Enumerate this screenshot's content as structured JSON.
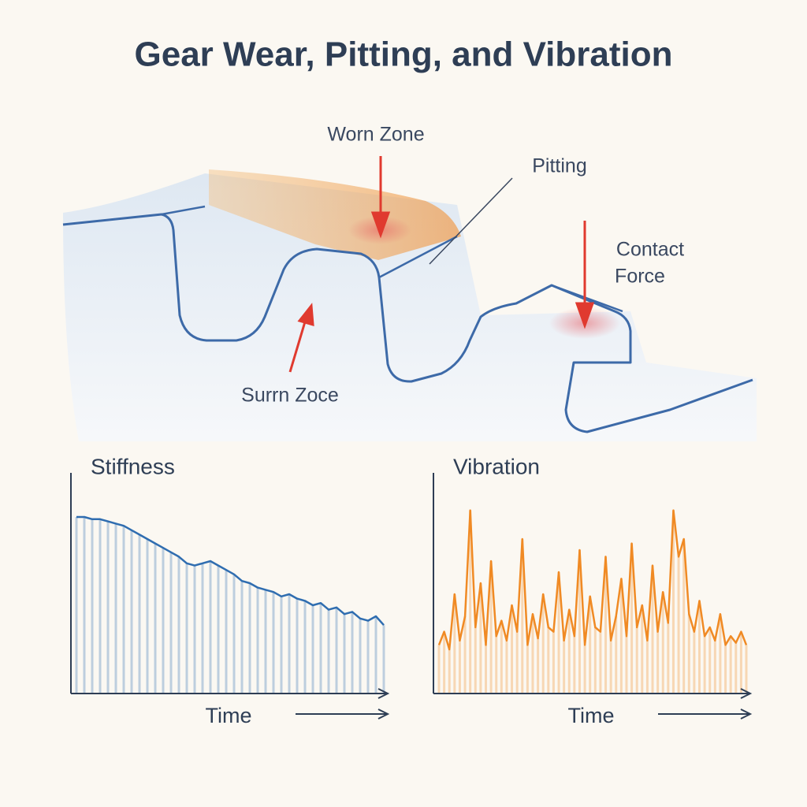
{
  "title": "Gear Wear, Pitting, and Vibration",
  "diagram": {
    "labels": [
      "Worn Zone",
      "Pitting",
      "Contact",
      "Force",
      "Surrn Zoce"
    ]
  },
  "chart_data": [
    {
      "type": "area",
      "title": "Stiffness",
      "x_label": "Time",
      "color": "#2f6db0",
      "ylim": [
        0,
        100
      ],
      "values": [
        80,
        80,
        79,
        79,
        78,
        77,
        76,
        74,
        72,
        70,
        68,
        66,
        64,
        62,
        59,
        58,
        59,
        60,
        58,
        56,
        54,
        51,
        50,
        48,
        47,
        46,
        44,
        45,
        43,
        42,
        40,
        41,
        38,
        39,
        36,
        37,
        34,
        33,
        35,
        31
      ]
    },
    {
      "type": "area",
      "title": "Vibration",
      "x_label": "Time",
      "color": "#f08a24",
      "ylim": [
        0,
        100
      ],
      "values": [
        22,
        28,
        20,
        45,
        24,
        35,
        83,
        30,
        50,
        22,
        60,
        26,
        33,
        24,
        40,
        28,
        70,
        22,
        36,
        25,
        45,
        30,
        28,
        55,
        24,
        38,
        26,
        65,
        22,
        44,
        30,
        28,
        62,
        24,
        35,
        52,
        26,
        68,
        30,
        40,
        24,
        58,
        28,
        46,
        32,
        83,
        62,
        70,
        36,
        28,
        42,
        26,
        30,
        24,
        36,
        22,
        26,
        23,
        28,
        22
      ]
    }
  ]
}
